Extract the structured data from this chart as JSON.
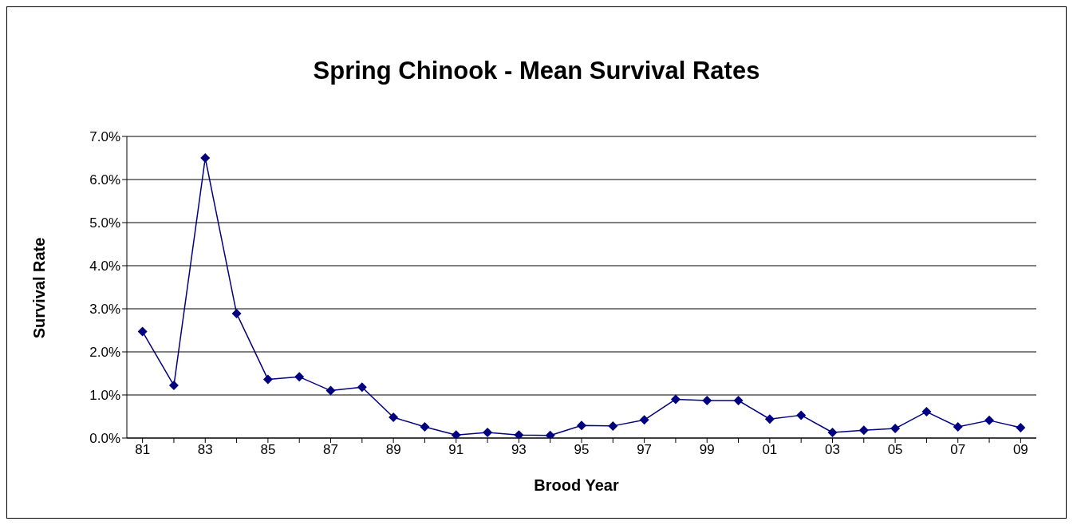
{
  "chart_data": {
    "type": "line",
    "title": "Spring Chinook - Mean Survival Rates",
    "xlabel": "Brood Year",
    "ylabel": "Survival Rate",
    "categories": [
      "81",
      null,
      "83",
      null,
      "85",
      null,
      "87",
      null,
      "89",
      null,
      "91",
      null,
      "93",
      null,
      "95",
      null,
      "97",
      null,
      "99",
      null,
      "01",
      null,
      "03",
      null,
      "05",
      null,
      "07",
      null,
      "09"
    ],
    "series": [
      {
        "color": "#000080",
        "values": [
          2.47,
          1.22,
          6.5,
          2.89,
          1.36,
          1.42,
          1.1,
          1.18,
          0.48,
          0.26,
          0.07,
          0.13,
          0.07,
          0.06,
          0.29,
          0.28,
          0.42,
          0.9,
          0.87,
          0.87,
          0.44,
          0.53,
          0.13,
          0.18,
          0.22,
          0.61,
          0.26,
          0.41,
          0.24
        ]
      }
    ],
    "ylim": [
      0,
      7
    ],
    "yticks": [
      {
        "value": 0,
        "label": "0.0%"
      },
      {
        "value": 1,
        "label": "1.0%"
      },
      {
        "value": 2,
        "label": "2.0%"
      },
      {
        "value": 3,
        "label": "3.0%"
      },
      {
        "value": 4,
        "label": "4.0%"
      },
      {
        "value": 5,
        "label": "5.0%"
      },
      {
        "value": 6,
        "label": "6.0%"
      },
      {
        "value": 7,
        "label": "7.0%"
      }
    ],
    "grid": "y",
    "marker": "diamond",
    "line_style": "solid",
    "legend": false
  }
}
